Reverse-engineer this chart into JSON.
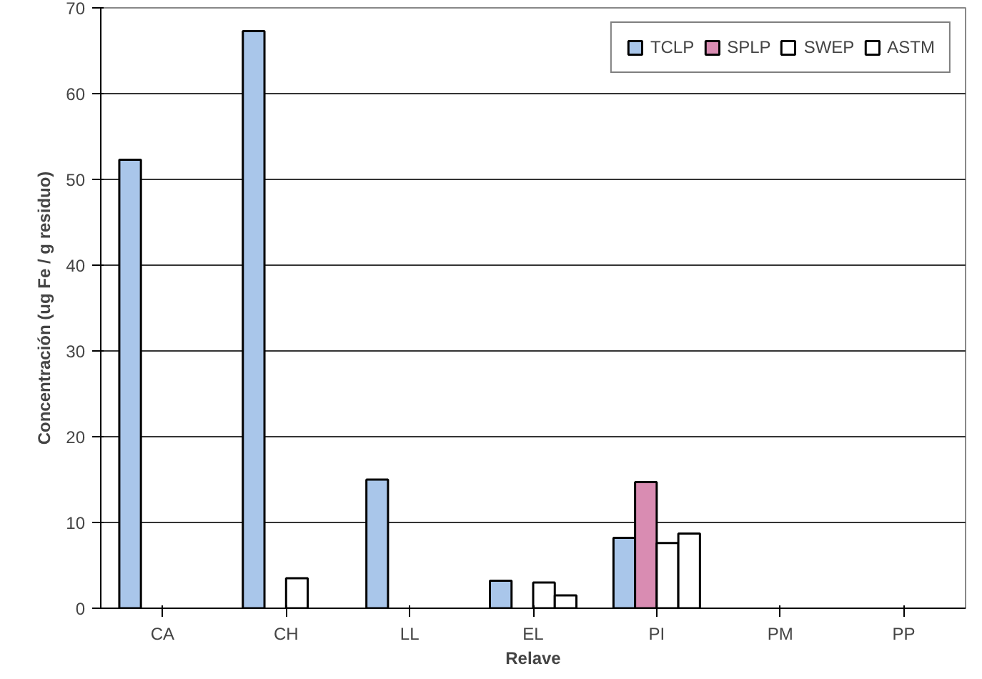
{
  "chart_data": {
    "type": "bar",
    "xlabel": "Relave",
    "ylabel": "Concentración (ug Fe / g residuo)",
    "categories": [
      "CA",
      "CH",
      "LL",
      "EL",
      "PI",
      "PM",
      "PP"
    ],
    "series": [
      {
        "name": "TCLP",
        "color": "#a9c6ea",
        "values": [
          52.3,
          67.3,
          15.0,
          3.2,
          8.2,
          null,
          null
        ]
      },
      {
        "name": "SPLP",
        "color": "#d98cb2",
        "values": [
          null,
          null,
          null,
          null,
          14.7,
          null,
          null
        ]
      },
      {
        "name": "SWEP",
        "color": "#ffffff",
        "values": [
          null,
          3.5,
          null,
          3.0,
          7.6,
          null,
          null
        ]
      },
      {
        "name": "ASTM",
        "color": "#ffffff",
        "values": [
          null,
          null,
          null,
          1.5,
          8.7,
          null,
          null
        ]
      }
    ],
    "ylim": [
      0,
      70
    ],
    "yticks": [
      0,
      10,
      20,
      30,
      40,
      50,
      60,
      70
    ],
    "grid": "y",
    "legend": "top right"
  }
}
